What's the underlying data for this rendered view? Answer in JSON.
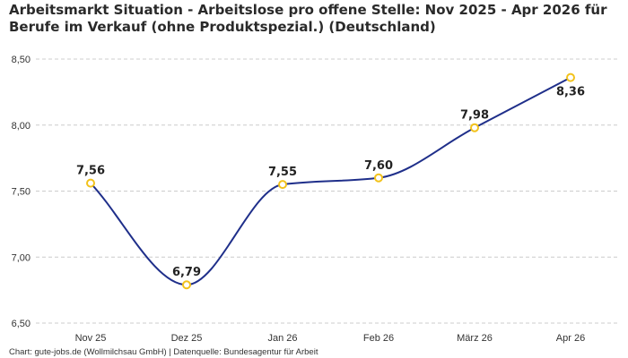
{
  "header": {
    "title_line1": "Arbeitsmarkt Situation - Arbeitslose pro offene Stelle: Nov 2025 - Apr 2026 für",
    "title_line2": "Berufe im Verkauf (ohne Produktspezial.) (Deutschland)"
  },
  "footer": {
    "source": "Chart: gute-jobs.de (Wollmilchsau GmbH) | Datenquelle: Bundesagentur für Arbeit"
  },
  "chart_data": {
    "type": "line",
    "title": "Arbeitsmarkt Situation - Arbeitslose pro offene Stelle: Nov 2025 - Apr 2026 für Berufe im Verkauf (ohne Produktspezial.) (Deutschland)",
    "categories": [
      "Nov 25",
      "Dez 25",
      "Jan 26",
      "Feb 26",
      "März 26",
      "Apr 26"
    ],
    "values": [
      7.56,
      6.79,
      7.55,
      7.6,
      7.98,
      8.36
    ],
    "data_labels": [
      "7,56",
      "6,79",
      "7,55",
      "7,60",
      "7,98",
      "8,36"
    ],
    "yticks": [
      6.5,
      7.0,
      7.5,
      8.0,
      8.5
    ],
    "ytick_labels": [
      "6,50",
      "7,00",
      "7,50",
      "8,00",
      "8,50"
    ],
    "ylim": [
      6.5,
      8.5
    ],
    "xlabel": "",
    "ylabel": "",
    "grid": "horizontal dashed",
    "legend": "none",
    "line_color": "#1f2f8a",
    "marker_color": "#f2c21b",
    "grid_color": "#cccccc"
  }
}
